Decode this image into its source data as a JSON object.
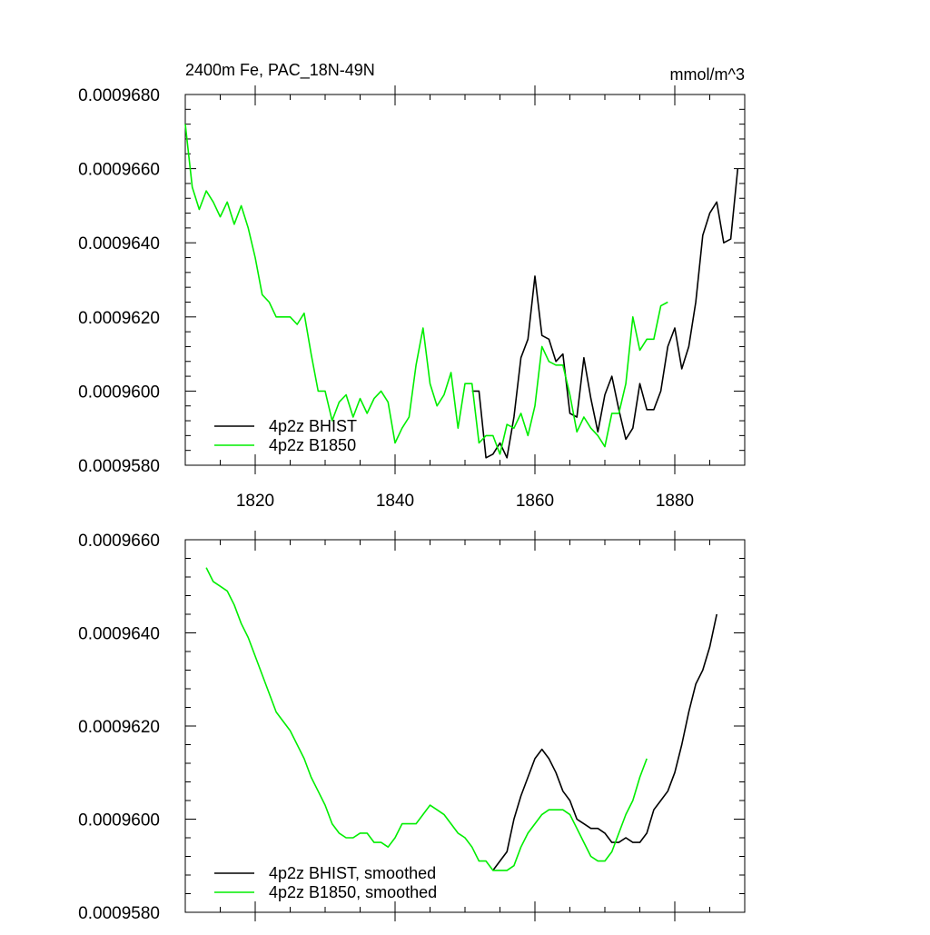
{
  "chart_data": [
    {
      "type": "line",
      "title": "2400m Fe, PAC_18N-49N",
      "units": "mmol/m^3",
      "xlabel": "",
      "ylabel": "",
      "xlim": [
        1810,
        1890
      ],
      "ylim": [
        0.000958,
        0.000968
      ],
      "x_ticks": [
        "1820",
        "1840",
        "1860",
        "1880"
      ],
      "y_ticks": [
        "0.0009580",
        "0.0009600",
        "0.0009620",
        "0.0009640",
        "0.0009660",
        "0.0009680"
      ],
      "legend_position": "bottom-left",
      "grid": false,
      "series": [
        {
          "name": "4p2z BHIST",
          "color": "#000000",
          "x": [
            1851,
            1852,
            1853,
            1854,
            1855,
            1856,
            1857,
            1858,
            1859,
            1860,
            1861,
            1862,
            1863,
            1864,
            1865,
            1866,
            1867,
            1868,
            1869,
            1870,
            1871,
            1872,
            1873,
            1874,
            1875,
            1876,
            1877,
            1878,
            1879,
            1880,
            1881,
            1882,
            1883,
            1884,
            1885,
            1886,
            1887,
            1888,
            1889
          ],
          "y": [
            0.00096,
            0.00096,
            0.0009582,
            0.0009583,
            0.0009586,
            0.0009582,
            0.0009593,
            0.0009609,
            0.0009614,
            0.0009631,
            0.0009615,
            0.0009614,
            0.0009608,
            0.000961,
            0.0009594,
            0.0009593,
            0.0009609,
            0.0009598,
            0.0009589,
            0.0009599,
            0.0009604,
            0.0009595,
            0.0009587,
            0.000959,
            0.0009602,
            0.0009595,
            0.0009595,
            0.00096,
            0.0009612,
            0.0009617,
            0.0009606,
            0.0009612,
            0.0009624,
            0.0009642,
            0.0009648,
            0.0009651,
            0.000964,
            0.0009641,
            0.000966
          ]
        },
        {
          "name": "4p2z B1850",
          "color": "#00ee00",
          "x": [
            1810,
            1811,
            1812,
            1813,
            1814,
            1815,
            1816,
            1817,
            1818,
            1819,
            1820,
            1821,
            1822,
            1823,
            1824,
            1825,
            1826,
            1827,
            1828,
            1829,
            1830,
            1831,
            1832,
            1833,
            1834,
            1835,
            1836,
            1837,
            1838,
            1839,
            1840,
            1841,
            1842,
            1843,
            1844,
            1845,
            1846,
            1847,
            1848,
            1849,
            1850,
            1851,
            1852,
            1853,
            1854,
            1855,
            1856,
            1857,
            1858,
            1859,
            1860,
            1861,
            1862,
            1863,
            1864,
            1865,
            1866,
            1867,
            1868,
            1869,
            1870,
            1871,
            1872,
            1873,
            1874,
            1875,
            1876,
            1877,
            1878,
            1879
          ],
          "y": [
            0.0009672,
            0.0009655,
            0.0009649,
            0.0009654,
            0.0009651,
            0.0009647,
            0.0009651,
            0.0009645,
            0.000965,
            0.0009644,
            0.0009636,
            0.0009626,
            0.0009624,
            0.000962,
            0.000962,
            0.000962,
            0.0009618,
            0.0009621,
            0.000961,
            0.00096,
            0.00096,
            0.0009592,
            0.0009597,
            0.0009599,
            0.0009593,
            0.0009598,
            0.0009594,
            0.0009598,
            0.00096,
            0.0009597,
            0.0009586,
            0.000959,
            0.0009593,
            0.0009607,
            0.0009617,
            0.0009602,
            0.0009596,
            0.0009599,
            0.0009605,
            0.000959,
            0.0009602,
            0.0009602,
            0.0009586,
            0.0009588,
            0.0009588,
            0.0009583,
            0.0009591,
            0.000959,
            0.0009594,
            0.0009588,
            0.0009596,
            0.0009612,
            0.0009608,
            0.0009607,
            0.0009607,
            0.0009599,
            0.0009589,
            0.0009593,
            0.000959,
            0.0009588,
            0.0009585,
            0.0009594,
            0.0009594,
            0.0009602,
            0.000962,
            0.0009611,
            0.0009614,
            0.0009614,
            0.0009623,
            0.0009624
          ]
        }
      ]
    },
    {
      "type": "line",
      "title": "",
      "xlabel": "",
      "ylabel": "",
      "xlim": [
        1810,
        1890
      ],
      "ylim": [
        0.000958,
        0.000966
      ],
      "x_ticks": [],
      "y_ticks": [
        "0.0009580",
        "0.0009600",
        "0.0009620",
        "0.0009640",
        "0.0009660"
      ],
      "legend_position": "bottom-left",
      "grid": false,
      "series": [
        {
          "name": "4p2z BHIST, smoothed",
          "color": "#000000",
          "x": [
            1854,
            1855,
            1856,
            1857,
            1858,
            1859,
            1860,
            1861,
            1862,
            1863,
            1864,
            1865,
            1866,
            1867,
            1868,
            1869,
            1870,
            1871,
            1872,
            1873,
            1874,
            1875,
            1876,
            1877,
            1878,
            1879,
            1880,
            1881,
            1882,
            1883,
            1884,
            1885,
            1886
          ],
          "y": [
            0.0009589,
            0.0009591,
            0.0009593,
            0.00096,
            0.0009605,
            0.0009609,
            0.0009613,
            0.0009615,
            0.0009613,
            0.000961,
            0.0009606,
            0.0009604,
            0.00096,
            0.0009599,
            0.0009598,
            0.0009598,
            0.0009597,
            0.0009595,
            0.0009595,
            0.0009596,
            0.0009595,
            0.0009595,
            0.0009597,
            0.0009602,
            0.0009604,
            0.0009606,
            0.000961,
            0.0009616,
            0.0009623,
            0.0009629,
            0.0009632,
            0.0009637,
            0.0009644
          ]
        },
        {
          "name": "4p2z B1850, smoothed",
          "color": "#00ee00",
          "x": [
            1813,
            1814,
            1815,
            1816,
            1817,
            1818,
            1819,
            1820,
            1821,
            1822,
            1823,
            1824,
            1825,
            1826,
            1827,
            1828,
            1829,
            1830,
            1831,
            1832,
            1833,
            1834,
            1835,
            1836,
            1837,
            1838,
            1839,
            1840,
            1841,
            1842,
            1843,
            1844,
            1845,
            1846,
            1847,
            1848,
            1849,
            1850,
            1851,
            1852,
            1853,
            1854,
            1855,
            1856,
            1857,
            1858,
            1859,
            1860,
            1861,
            1862,
            1863,
            1864,
            1865,
            1866,
            1867,
            1868,
            1869,
            1870,
            1871,
            1872,
            1873,
            1874,
            1875,
            1876
          ],
          "y": [
            0.0009654,
            0.0009651,
            0.000965,
            0.0009649,
            0.0009646,
            0.0009642,
            0.0009639,
            0.0009635,
            0.0009631,
            0.0009627,
            0.0009623,
            0.0009621,
            0.0009619,
            0.0009616,
            0.0009613,
            0.0009609,
            0.0009606,
            0.0009603,
            0.0009599,
            0.0009597,
            0.0009596,
            0.0009596,
            0.0009597,
            0.0009597,
            0.0009595,
            0.0009595,
            0.0009594,
            0.0009596,
            0.0009599,
            0.0009599,
            0.0009599,
            0.0009601,
            0.0009603,
            0.0009602,
            0.0009601,
            0.0009599,
            0.0009597,
            0.0009596,
            0.0009594,
            0.0009591,
            0.0009591,
            0.0009589,
            0.0009589,
            0.0009589,
            0.000959,
            0.0009594,
            0.0009597,
            0.0009599,
            0.0009601,
            0.0009602,
            0.0009602,
            0.0009602,
            0.0009601,
            0.0009598,
            0.0009595,
            0.0009592,
            0.0009591,
            0.0009591,
            0.0009593,
            0.0009597,
            0.0009601,
            0.0009604,
            0.0009609,
            0.0009613
          ]
        }
      ]
    }
  ]
}
